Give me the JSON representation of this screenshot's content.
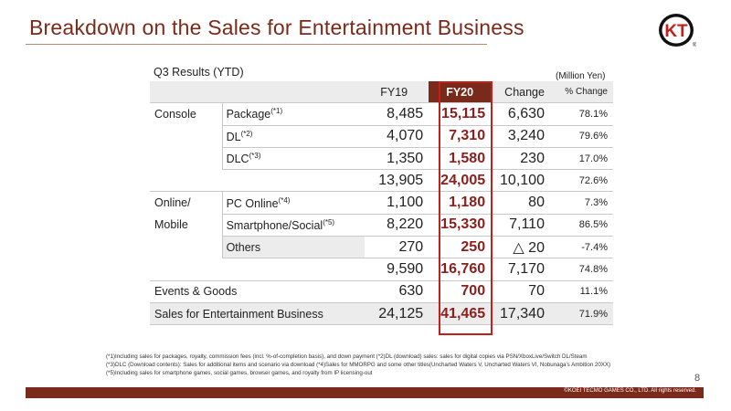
{
  "title": "Breakdown on the Sales for Entertainment Business",
  "subtitle": "Q3 Results (YTD)",
  "units": "(Million Yen)",
  "logo": {
    "text": "KT",
    "mark": "®"
  },
  "headers": {
    "fy19": "FY19",
    "fy20": "FY20",
    "change": "Change",
    "pct": "% Change"
  },
  "categories": {
    "console": "Console",
    "online_1": "Online/",
    "online_2": "Mobile"
  },
  "rows": [
    {
      "sub": "Package",
      "sup": "(*1)",
      "fy19": "8,485",
      "fy20": "15,115",
      "change": "6,630",
      "pct": "78.1%"
    },
    {
      "sub": "DL",
      "sup": "(*2)",
      "fy19": "4,070",
      "fy20": "7,310",
      "change": "3,240",
      "pct": "79.6%"
    },
    {
      "sub": "DLC",
      "sup": "(*3)",
      "fy19": "1,350",
      "fy20": "1,580",
      "change": "230",
      "pct": "17.0%"
    },
    {
      "fy19": "13,905",
      "fy20": "24,005",
      "change": "10,100",
      "pct": "72.6%"
    },
    {
      "sub": "PC Online",
      "sup": "(*4)",
      "fy19": "1,100",
      "fy20": "1,180",
      "change": "80",
      "pct": "7.3%"
    },
    {
      "sub": "Smartphone/Social",
      "sup": "(*5)",
      "fy19": "8,220",
      "fy20": "15,330",
      "change": "7,110",
      "pct": "86.5%"
    },
    {
      "sub": "Others",
      "fy19": "270",
      "fy20": "250",
      "change": "△ 20",
      "pct": "-7.4%"
    },
    {
      "fy19": "9,590",
      "fy20": "16,760",
      "change": "7,170",
      "pct": "74.8%"
    },
    {
      "label": "Events & Goods",
      "fy19": "630",
      "fy20": "700",
      "change": "70",
      "pct": "11.1%"
    },
    {
      "label": "Sales for Entertainment Business",
      "fy19": "24,125",
      "fy20": "41,465",
      "change": "17,340",
      "pct": "71.9%"
    }
  ],
  "notes": [
    "(*1)Including sales for packages, royalty, commission fees (incl. %-of-completion basis), and down payment   (*2)DL (download) sales: sales for digital copies via PSN/XboxLive/Switch DL/Steam",
    "(*3)DLC (Download contents): Sales for additional items and scenario via download   (*4)Sales for MMORPG and some other titles(Uncharted Waters V, Uncharted Waters VI, Nobunaga's Ambition 20XX)",
    "(*5)Including sales for smartphone games, social games, browser games, and royalty from IP licensing-out"
  ],
  "page_number": "8",
  "copyright": "©KOEI TECMO GAMES CO., LTD. All rights reserved.",
  "colors": {
    "brand": "#7a2a1a",
    "highlight_border": "#c3201a",
    "fy20_text": "#8b1f1c",
    "shade": "#ececec"
  }
}
